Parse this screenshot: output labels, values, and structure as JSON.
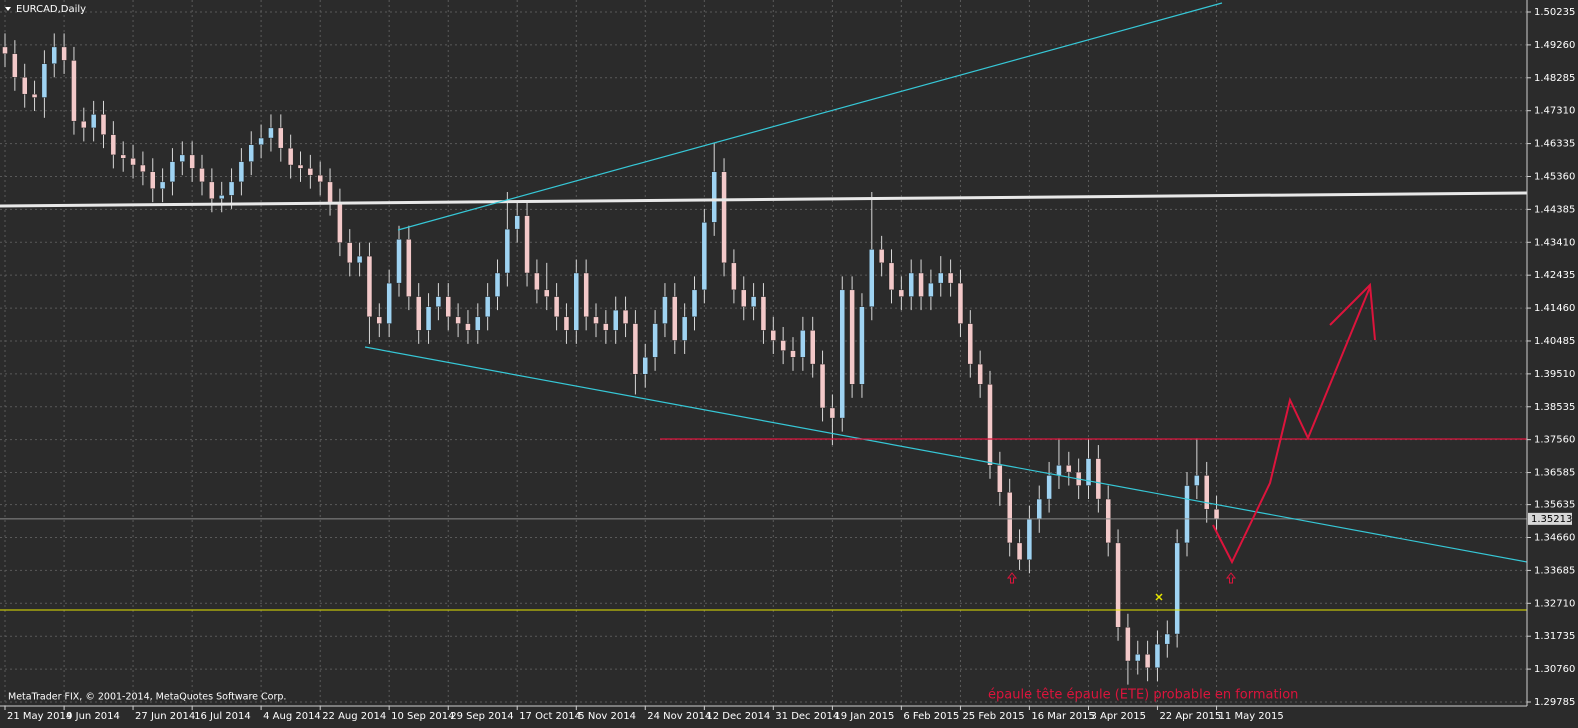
{
  "chart_data": {
    "type": "candlestick",
    "title": "EURCAD,Daily",
    "copyright": "MetaTrader FIX, © 2001-2014, MetaQuotes Software Corp.",
    "annotation": "épaule tête épaule (ETE) probable en formation",
    "categories": [
      "21 May 2014",
      null,
      null,
      null,
      null,
      null,
      "9 Jun 2014",
      null,
      null,
      null,
      null,
      null,
      null,
      "27 Jun 2014",
      null,
      null,
      null,
      null,
      null,
      "16 Jul 2014",
      null,
      null,
      null,
      null,
      null,
      null,
      "4 Aug 2014",
      null,
      null,
      null,
      null,
      null,
      "22 Aug 2014",
      null,
      null,
      null,
      null,
      null,
      null,
      "10 Sep 2014",
      null,
      null,
      null,
      null,
      null,
      "29 Sep 2014",
      null,
      null,
      null,
      null,
      null,
      null,
      "17 Oct 2014",
      null,
      null,
      null,
      null,
      null,
      "5 Nov 2014",
      null,
      null,
      null,
      null,
      null,
      null,
      "24 Nov 2014",
      null,
      null,
      null,
      null,
      null,
      "12 Dec 2014",
      null,
      null,
      null,
      null,
      null,
      null,
      "31 Dec 2014",
      null,
      null,
      null,
      null,
      null,
      "19 Jan 2015",
      null,
      null,
      null,
      null,
      null,
      null,
      "6 Feb 2015",
      null,
      null,
      null,
      null,
      null,
      "25 Feb 2015",
      null,
      null,
      null,
      null,
      null,
      null,
      "16 Mar 2015",
      null,
      null,
      null,
      null,
      null,
      "3 Apr 2015",
      null,
      null,
      null,
      null,
      null,
      null,
      "22 Apr 2015",
      null,
      null,
      null,
      null,
      null,
      "11 May 2015"
    ],
    "open": [
      1.492,
      1.49,
      1.483,
      1.478,
      1.477,
      1.487,
      1.492,
      1.488,
      1.47,
      1.468,
      1.472,
      1.466,
      1.46,
      1.459,
      1.457,
      1.455,
      1.45,
      1.452,
      1.458,
      1.46,
      1.456,
      1.452,
      1.447,
      1.448,
      1.452,
      1.458,
      1.463,
      1.465,
      1.468,
      1.462,
      1.457,
      1.456,
      1.454,
      1.452,
      1.446,
      1.434,
      1.428,
      1.43,
      1.412,
      1.41,
      1.422,
      1.435,
      1.418,
      1.408,
      1.415,
      1.418,
      1.412,
      1.41,
      1.408,
      1.412,
      1.418,
      1.425,
      1.438,
      1.442,
      1.425,
      1.42,
      1.418,
      1.412,
      1.408,
      1.425,
      1.412,
      1.41,
      1.408,
      1.414,
      1.41,
      1.395,
      1.4,
      1.41,
      1.418,
      1.405,
      1.412,
      1.42,
      1.44,
      1.455,
      1.428,
      1.42,
      1.415,
      1.418,
      1.408,
      1.405,
      1.402,
      1.4,
      1.408,
      1.398,
      1.385,
      1.382,
      1.42,
      1.392,
      1.415,
      1.432,
      1.428,
      1.42,
      1.418,
      1.425,
      1.418,
      1.422,
      1.425,
      1.422,
      1.41,
      1.398,
      1.392,
      1.368,
      1.36,
      1.345,
      1.34,
      1.352,
      1.358,
      1.365,
      1.368,
      1.366,
      1.362,
      1.37,
      1.358,
      1.345,
      1.32,
      1.31,
      1.312,
      1.308,
      1.315,
      1.318,
      1.345,
      1.362,
      1.365,
      1.355
    ],
    "high": [
      1.496,
      1.494,
      1.487,
      1.482,
      1.491,
      1.496,
      1.496,
      1.492,
      1.474,
      1.476,
      1.476,
      1.47,
      1.464,
      1.463,
      1.461,
      1.459,
      1.456,
      1.462,
      1.464,
      1.464,
      1.46,
      1.456,
      1.452,
      1.456,
      1.462,
      1.467,
      1.469,
      1.472,
      1.472,
      1.466,
      1.461,
      1.46,
      1.458,
      1.456,
      1.45,
      1.438,
      1.434,
      1.434,
      1.416,
      1.426,
      1.439,
      1.439,
      1.422,
      1.419,
      1.422,
      1.422,
      1.416,
      1.414,
      1.416,
      1.422,
      1.429,
      1.449,
      1.446,
      1.446,
      1.429,
      1.428,
      1.422,
      1.416,
      1.429,
      1.429,
      1.416,
      1.414,
      1.418,
      1.418,
      1.414,
      1.404,
      1.414,
      1.422,
      1.422,
      1.416,
      1.424,
      1.444,
      1.4635,
      1.459,
      1.432,
      1.424,
      1.422,
      1.422,
      1.412,
      1.409,
      1.406,
      1.412,
      1.412,
      1.402,
      1.389,
      1.424,
      1.424,
      1.419,
      1.449,
      1.436,
      1.432,
      1.424,
      1.429,
      1.429,
      1.426,
      1.43,
      1.429,
      1.426,
      1.414,
      1.402,
      1.396,
      1.372,
      1.364,
      1.349,
      1.356,
      1.362,
      1.369,
      1.376,
      1.372,
      1.37,
      1.376,
      1.374,
      1.362,
      1.349,
      1.324,
      1.316,
      1.316,
      1.319,
      1.322,
      1.349,
      1.366,
      1.376,
      1.369,
      1.359
    ],
    "low": [
      1.486,
      1.479,
      1.474,
      1.473,
      1.471,
      1.483,
      1.484,
      1.466,
      1.464,
      1.464,
      1.462,
      1.456,
      1.455,
      1.453,
      1.451,
      1.446,
      1.446,
      1.448,
      1.454,
      1.452,
      1.448,
      1.443,
      1.443,
      1.444,
      1.448,
      1.454,
      1.459,
      1.461,
      1.458,
      1.453,
      1.452,
      1.45,
      1.448,
      1.442,
      1.43,
      1.424,
      1.424,
      1.404,
      1.406,
      1.406,
      1.418,
      1.414,
      1.404,
      1.404,
      1.411,
      1.408,
      1.406,
      1.404,
      1.404,
      1.408,
      1.414,
      1.421,
      1.434,
      1.421,
      1.416,
      1.414,
      1.408,
      1.404,
      1.404,
      1.408,
      1.406,
      1.404,
      1.404,
      1.406,
      1.389,
      1.391,
      1.396,
      1.406,
      1.401,
      1.401,
      1.408,
      1.416,
      1.436,
      1.424,
      1.416,
      1.411,
      1.411,
      1.404,
      1.401,
      1.398,
      1.396,
      1.396,
      1.394,
      1.381,
      1.374,
      1.378,
      1.388,
      1.388,
      1.411,
      1.424,
      1.416,
      1.414,
      1.414,
      1.414,
      1.414,
      1.418,
      1.418,
      1.406,
      1.394,
      1.388,
      1.364,
      1.356,
      1.341,
      1.337,
      1.336,
      1.348,
      1.354,
      1.361,
      1.362,
      1.358,
      1.358,
      1.354,
      1.341,
      1.316,
      1.303,
      1.306,
      1.304,
      1.304,
      1.311,
      1.314,
      1.341,
      1.358,
      1.351,
      1.348
    ],
    "close": [
      1.49,
      1.483,
      1.478,
      1.477,
      1.487,
      1.492,
      1.488,
      1.47,
      1.468,
      1.472,
      1.466,
      1.46,
      1.459,
      1.457,
      1.455,
      1.45,
      1.452,
      1.458,
      1.46,
      1.456,
      1.452,
      1.447,
      1.448,
      1.452,
      1.458,
      1.463,
      1.465,
      1.468,
      1.462,
      1.457,
      1.456,
      1.454,
      1.452,
      1.446,
      1.434,
      1.428,
      1.43,
      1.412,
      1.41,
      1.422,
      1.435,
      1.418,
      1.408,
      1.415,
      1.418,
      1.412,
      1.41,
      1.408,
      1.412,
      1.418,
      1.425,
      1.438,
      1.442,
      1.425,
      1.42,
      1.418,
      1.412,
      1.408,
      1.425,
      1.412,
      1.41,
      1.408,
      1.414,
      1.41,
      1.395,
      1.4,
      1.41,
      1.418,
      1.405,
      1.412,
      1.42,
      1.44,
      1.455,
      1.428,
      1.42,
      1.415,
      1.418,
      1.408,
      1.405,
      1.402,
      1.4,
      1.408,
      1.398,
      1.385,
      1.382,
      1.42,
      1.392,
      1.415,
      1.432,
      1.428,
      1.42,
      1.418,
      1.425,
      1.418,
      1.422,
      1.425,
      1.422,
      1.41,
      1.398,
      1.392,
      1.368,
      1.36,
      1.345,
      1.34,
      1.352,
      1.358,
      1.365,
      1.368,
      1.366,
      1.362,
      1.37,
      1.358,
      1.345,
      1.32,
      1.31,
      1.312,
      1.308,
      1.315,
      1.318,
      1.345,
      1.362,
      1.365,
      1.355,
      1.352
    ],
    "up_color": "#9fd3f2",
    "down_color": "#f3c9c9",
    "wick_color": "#d8d8d8",
    "ylim": [
      1.29785,
      1.50235
    ],
    "yticks": [
      1.50235,
      {
        "value": 1.4926,
        "label": "1.49260"
      },
      1.48285,
      {
        "value": 1.4731,
        "label": "1.47310"
      },
      1.46335,
      {
        "value": 1.4536,
        "label": "1.45360"
      },
      1.44385,
      {
        "value": 1.4341,
        "label": "1.43410"
      },
      1.42435,
      {
        "value": 1.4146,
        "label": "1.41460"
      },
      1.40485,
      {
        "value": 1.3951,
        "label": "1.39510"
      },
      1.38535,
      {
        "value": 1.3756,
        "label": "1.37560"
      },
      1.36585,
      1.35635,
      {
        "value": 1.3466,
        "label": "1.34660"
      },
      1.33685,
      {
        "value": 1.3271,
        "label": "1.32710"
      },
      1.31735,
      {
        "value": 1.3076,
        "label": "1.30760"
      },
      1.29785
    ],
    "current_price": 1.35213,
    "grid": true
  }
}
